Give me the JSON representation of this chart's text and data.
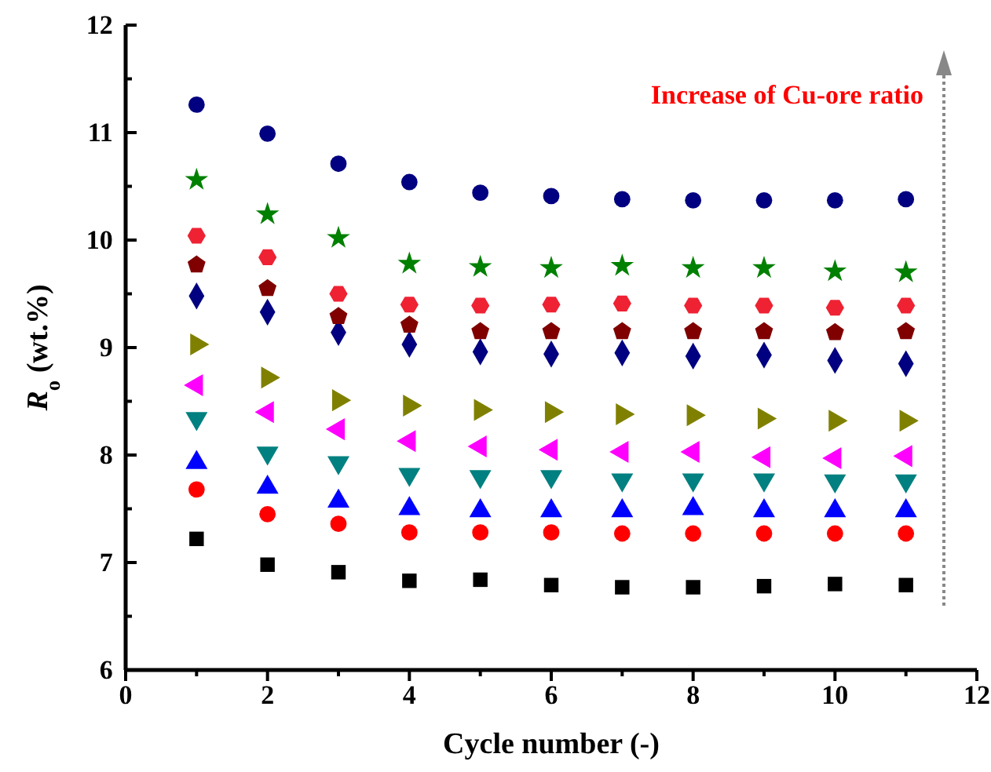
{
  "chart_data": {
    "type": "scatter",
    "xlabel": "Cycle number (-)",
    "ylabel": "R$_{o}$ (wt.%)",
    "annotations": [
      "Increase of Cu-ore ratio"
    ],
    "x": [
      1,
      2,
      3,
      4,
      5,
      6,
      7,
      8,
      9,
      10,
      11
    ],
    "xlim": [
      0,
      12
    ],
    "xticks": [
      0,
      {
        "value": 1,
        "label": null
      },
      2,
      {
        "value": 3,
        "label": null
      },
      4,
      {
        "value": 5,
        "label": null
      },
      6,
      {
        "value": 7,
        "label": null
      },
      8,
      {
        "value": 9,
        "label": null
      },
      10,
      {
        "value": 11,
        "label": null
      },
      12
    ],
    "ylim": [
      6,
      12
    ],
    "yticks": [
      6,
      {
        "value": 6.5,
        "label": null
      },
      7,
      {
        "value": 7.5,
        "label": null
      },
      8,
      {
        "value": 8.5,
        "label": null
      },
      9,
      {
        "value": 9.5,
        "label": null
      },
      10,
      {
        "value": 10.5,
        "label": null
      },
      11,
      {
        "value": 11.5,
        "label": null
      },
      12
    ],
    "grid": false,
    "legend": false,
    "series": [
      {
        "color": "#000000",
        "marker": "square",
        "values": [
          7.22,
          6.98,
          6.91,
          6.83,
          6.84,
          6.79,
          6.77,
          6.77,
          6.78,
          6.8,
          6.79
        ]
      },
      {
        "color": "#ff0000",
        "marker": "circle",
        "values": [
          7.68,
          7.45,
          7.36,
          7.28,
          7.28,
          7.28,
          7.27,
          7.27,
          7.27,
          7.27,
          7.27
        ]
      },
      {
        "color": "#0000ff",
        "marker": "triangle",
        "values": [
          7.93,
          7.7,
          7.57,
          7.5,
          7.48,
          7.48,
          7.48,
          7.5,
          7.48,
          7.48,
          7.48
        ]
      },
      {
        "color": "#008080",
        "marker": "triangle-down",
        "values": [
          8.34,
          8.02,
          7.93,
          7.82,
          7.8,
          7.8,
          7.77,
          7.77,
          7.77,
          7.76,
          7.76
        ]
      },
      {
        "color": "#ff00ff",
        "marker": "triangle-left",
        "values": [
          8.65,
          8.4,
          8.24,
          8.13,
          8.08,
          8.05,
          8.03,
          8.03,
          7.98,
          7.97,
          7.99
        ]
      },
      {
        "color": "#808000",
        "marker": "triangle-right",
        "values": [
          9.03,
          8.72,
          8.51,
          8.46,
          8.42,
          8.4,
          8.38,
          8.37,
          8.34,
          8.32,
          8.32
        ]
      },
      {
        "color": "#000080",
        "marker": "diamond",
        "values": [
          9.48,
          9.33,
          9.14,
          9.03,
          8.96,
          8.94,
          8.95,
          8.92,
          8.93,
          8.88,
          8.85
        ]
      },
      {
        "color": "#800000",
        "values": [
          9.77,
          9.55,
          9.29,
          9.21,
          9.15,
          9.15,
          9.15,
          9.15,
          9.15,
          9.14,
          9.15
        ]
      },
      {
        "color": "#ee2233",
        "values": [
          10.04,
          9.84,
          9.5,
          9.4,
          9.39,
          9.4,
          9.41,
          9.39,
          9.39,
          9.37,
          9.39
        ]
      },
      {
        "color": "#008000",
        "marker": "star",
        "values": [
          10.56,
          10.24,
          10.02,
          9.78,
          9.75,
          9.74,
          9.76,
          9.74,
          9.74,
          9.71,
          9.7
        ]
      },
      {
        "color": "#000080",
        "marker": "circle",
        "values": [
          11.26,
          10.99,
          10.71,
          10.54,
          10.44,
          10.41,
          10.38,
          10.37,
          10.37,
          10.37,
          10.38
        ]
      }
    ]
  }
}
